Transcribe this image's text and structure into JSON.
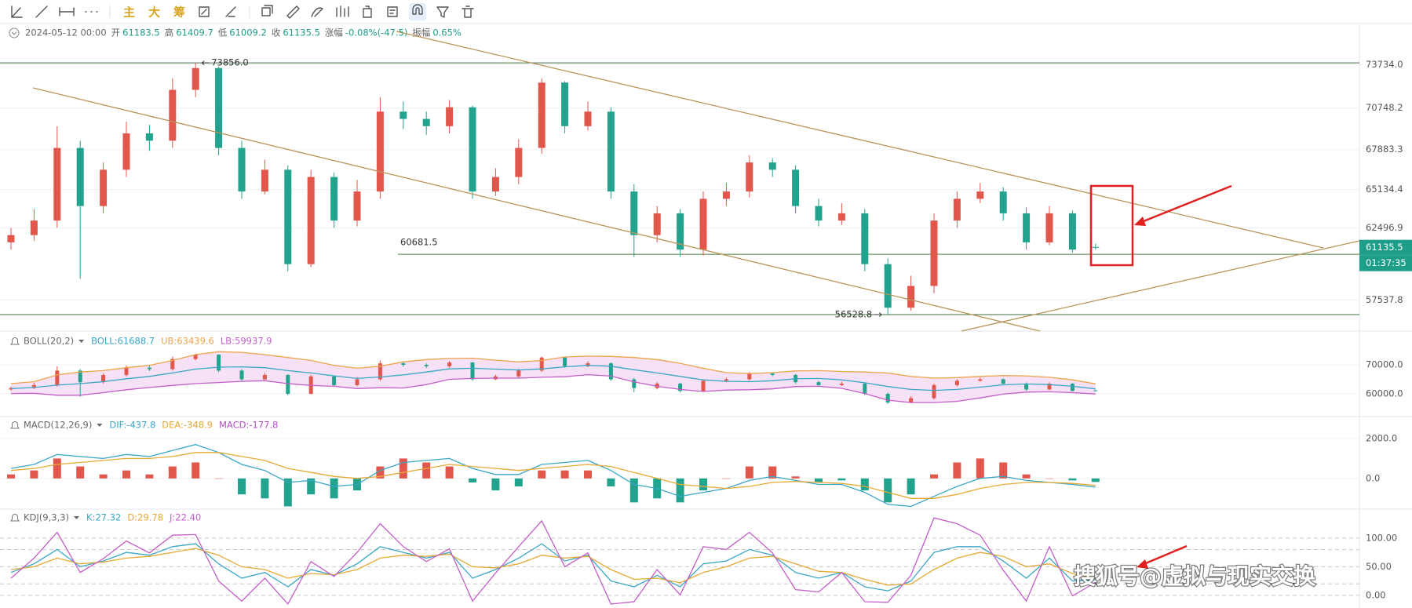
{
  "toolbar": {
    "labels": [
      "主",
      "大",
      "筹"
    ]
  },
  "info": {
    "datetime": "2024-05-12 00:00",
    "items": [
      {
        "label": "开",
        "value": 61183.5
      },
      {
        "label": "高",
        "value": 61409.7
      },
      {
        "label": "低",
        "value": 61009.2
      },
      {
        "label": "收",
        "value": 61135.5
      },
      {
        "label": "涨幅",
        "value": "-0.08%(-47.5)"
      },
      {
        "label": "振幅",
        "value": "0.65%"
      }
    ]
  },
  "watermark": "搜狐号@虚拟与现实交换",
  "chart_data": [
    {
      "type": "candlestick",
      "open": [
        61500,
        62000,
        63000,
        68000,
        64000,
        66500,
        69000,
        68500,
        72000,
        73500,
        68000,
        65000,
        66500,
        60000,
        66000,
        63000,
        65000,
        70500,
        70000,
        69500,
        70800,
        65000,
        66000,
        68000,
        72500,
        69500,
        70500,
        65000,
        62000,
        63500,
        61000,
        64500,
        65000,
        67000,
        66500,
        64000,
        63000,
        63500,
        60000,
        57000,
        58500,
        63000,
        64500,
        65000,
        63500,
        61500,
        63500,
        61183.5
      ],
      "high": [
        62500,
        63800,
        69500,
        68500,
        67000,
        69800,
        69600,
        72800,
        73856.0,
        73600,
        68500,
        67200,
        66800,
        66500,
        66300,
        65800,
        71500,
        71200,
        70500,
        71300,
        70900,
        66600,
        68600,
        72800,
        72600,
        71200,
        70800,
        65500,
        64000,
        63800,
        65000,
        65600,
        67500,
        67300,
        66800,
        64500,
        64200,
        63800,
        60400,
        59200,
        63500,
        65000,
        65600,
        65300,
        63900,
        64000,
        63700,
        61409.7
      ],
      "low": [
        61000,
        61600,
        62500,
        59000,
        63500,
        66000,
        67800,
        68000,
        71500,
        67500,
        64500,
        64800,
        59500,
        59800,
        62500,
        62600,
        64500,
        69300,
        68900,
        69000,
        64500,
        64700,
        65500,
        67600,
        69000,
        69200,
        64500,
        60500,
        61500,
        60500,
        60600,
        64000,
        64600,
        66000,
        63500,
        62600,
        62700,
        59500,
        56528.8,
        56800,
        58000,
        62500,
        64200,
        63000,
        61000,
        61300,
        60800,
        61009.2
      ],
      "close": [
        62000,
        63000,
        68000,
        64000,
        66500,
        69000,
        68500,
        72000,
        73500,
        68000,
        65000,
        66500,
        60000,
        66000,
        63000,
        65000,
        70500,
        70000,
        69500,
        70800,
        65000,
        66000,
        68000,
        72500,
        69500,
        70500,
        65000,
        62000,
        63500,
        61000,
        64500,
        65000,
        67000,
        66500,
        64000,
        63000,
        63500,
        60000,
        57000,
        58500,
        63000,
        64500,
        65000,
        63500,
        61500,
        63500,
        61000,
        61135.5
      ],
      "up_color": "#e2574c",
      "down_color": "#21a38d",
      "ylim": [
        55500,
        76350
      ],
      "yticks": [
        {
          "value": 73734.0,
          "label": "73734.0"
        },
        70748.2,
        67883.3,
        65134.4,
        62496.9,
        57537.8
      ],
      "grid": true,
      "annotations": [
        {
          "value": 73856.0,
          "label": "73856.0"
        },
        {
          "value": 56528.8,
          "label": "56528.8"
        }
      ],
      "level": 60681.5,
      "last_price": 61135.5,
      "countdown": "01:37:35"
    },
    {
      "type": "bollinger",
      "title": "BOLL(20,2)",
      "series": [
        {
          "name": "BOLL:61688.7",
          "color": "#3aa6c6",
          "values": [
            61800,
            62200,
            63000,
            63500,
            64200,
            65200,
            66000,
            67200,
            68500,
            69200,
            69300,
            69000,
            68000,
            67200,
            66200,
            65300,
            65800,
            66500,
            67500,
            68600,
            68800,
            68500,
            68200,
            68600,
            69300,
            69800,
            69500,
            68300,
            67200,
            66000,
            64800,
            64300,
            64200,
            64500,
            65200,
            65300,
            64800,
            63800,
            62500,
            61500,
            61200,
            61500,
            62300,
            63100,
            63400,
            63200,
            62600,
            61688.7
          ]
        },
        {
          "name": "UB:63439.6",
          "color": "#eda34a",
          "values": [
            63500,
            64200,
            66500,
            67500,
            68000,
            69000,
            69800,
            71500,
            73500,
            74500,
            74300,
            73500,
            72500,
            71500,
            69800,
            68800,
            69500,
            71000,
            71800,
            72200,
            72300,
            71600,
            71000,
            71500,
            72700,
            73000,
            72900,
            72500,
            71800,
            70500,
            68800,
            67300,
            67000,
            67300,
            67900,
            68000,
            67700,
            67500,
            67200,
            66000,
            65400,
            65600,
            66000,
            66300,
            66200,
            65700,
            64800,
            63439.6
          ]
        },
        {
          "name": "LB:59937.9",
          "color": "#c45ec8",
          "values": [
            60100,
            60200,
            59500,
            59500,
            60400,
            61400,
            62200,
            62900,
            63500,
            63900,
            64300,
            64500,
            63500,
            62900,
            62600,
            61800,
            62100,
            62000,
            63200,
            65000,
            65300,
            65400,
            65400,
            65700,
            65900,
            66600,
            66100,
            64100,
            62600,
            61500,
            60800,
            61300,
            61400,
            61700,
            62500,
            62600,
            61900,
            60100,
            57800,
            57000,
            57000,
            57400,
            58600,
            59900,
            60600,
            60700,
            60400,
            59937.9
          ]
        }
      ],
      "band_fill": "#f5d9f5",
      "ylim": [
        52430,
        80810
      ],
      "yticks": [
        {
          "value": 70000,
          "label": "70000.0"
        },
        {
          "value": 60000,
          "label": "60000.0"
        }
      ],
      "grid": true
    },
    {
      "type": "macd",
      "title": "MACD(12,26,9)",
      "series": [
        {
          "name": "DIF:-437.8",
          "color": "#3aa6c6",
          "values": [
            500,
            700,
            1200,
            1100,
            1000,
            1200,
            1100,
            1400,
            1700,
            1300,
            700,
            400,
            -200,
            -100,
            -400,
            -300,
            400,
            800,
            900,
            1000,
            500,
            200,
            200,
            700,
            800,
            900,
            400,
            -300,
            -500,
            -900,
            -700,
            -500,
            -100,
            100,
            -100,
            -300,
            -300,
            -700,
            -1300,
            -1400,
            -900,
            -400,
            0,
            100,
            -100,
            -200,
            -300,
            -437.8
          ]
        },
        {
          "name": "DEA:-348.9",
          "color": "#e6a935",
          "values": [
            400,
            500,
            700,
            800,
            900,
            1000,
            1000,
            1100,
            1300,
            1300,
            1100,
            900,
            500,
            300,
            100,
            0,
            100,
            300,
            500,
            700,
            600,
            500,
            400,
            500,
            600,
            700,
            600,
            300,
            0,
            -300,
            -400,
            -500,
            -400,
            -200,
            -150,
            -200,
            -250,
            -400,
            -700,
            -1000,
            -1000,
            -800,
            -500,
            -300,
            -200,
            -200,
            -250,
            -348.9
          ]
        },
        {
          "name": "MACD:-177.8",
          "color": "#b44fc6",
          "values": [
            200,
            400,
            1000,
            600,
            200,
            400,
            200,
            600,
            800,
            0,
            -800,
            -1000,
            -1400,
            -800,
            -1000,
            -600,
            600,
            1000,
            800,
            600,
            -200,
            -600,
            -400,
            400,
            400,
            400,
            -400,
            -1200,
            -1000,
            -1200,
            -600,
            0,
            600,
            600,
            100,
            -200,
            -100,
            -600,
            -1200,
            -800,
            200,
            800,
            1000,
            800,
            200,
            0,
            -100,
            -177.8
          ]
        }
      ],
      "up_color": "#e2574c",
      "down_color": "#21a38d",
      "ylim": [
        -1500,
        3060
      ],
      "yticks": [
        {
          "value": 2000,
          "label": "2000.0"
        },
        {
          "value": 0,
          "label": "0.0"
        }
      ],
      "grid": true
    },
    {
      "type": "kdj",
      "title": "KDJ(9,3,3)",
      "series": [
        {
          "name": "K:27.32",
          "color": "#3aa6c6",
          "values": [
            40,
            55,
            80,
            50,
            60,
            75,
            70,
            85,
            90,
            55,
            30,
            40,
            15,
            45,
            35,
            55,
            85,
            75,
            65,
            75,
            30,
            45,
            65,
            90,
            60,
            70,
            25,
            15,
            35,
            15,
            55,
            60,
            80,
            70,
            40,
            30,
            40,
            15,
            8,
            25,
            75,
            85,
            85,
            60,
            30,
            65,
            25,
            27.32
          ]
        },
        {
          "name": "D:29.78",
          "color": "#e6a935",
          "values": [
            45,
            50,
            65,
            55,
            58,
            65,
            68,
            75,
            82,
            70,
            50,
            45,
            30,
            38,
            36,
            45,
            65,
            70,
            68,
            72,
            50,
            48,
            55,
            70,
            65,
            68,
            45,
            28,
            30,
            22,
            40,
            50,
            65,
            68,
            55,
            42,
            40,
            28,
            18,
            20,
            45,
            65,
            75,
            68,
            50,
            55,
            38,
            29.78
          ]
        },
        {
          "name": "J:22.40",
          "color": "#c45ec8",
          "values": [
            30,
            65,
            110,
            40,
            64,
            95,
            74,
            105,
            106,
            25,
            -10,
            30,
            -15,
            59,
            33,
            75,
            125,
            85,
            59,
            81,
            -10,
            39,
            85,
            130,
            50,
            74,
            -15,
            -11,
            45,
            1,
            85,
            80,
            110,
            74,
            10,
            6,
            40,
            -11,
            -12,
            35,
            135,
            125,
            105,
            44,
            -10,
            85,
            -1,
            22.4
          ]
        }
      ],
      "ylim": [
        -22,
        149
      ],
      "yticks": [
        {
          "value": 100,
          "label": "100.00"
        },
        {
          "value": 50,
          "label": "50.00"
        },
        {
          "value": 0,
          "label": "0.00"
        }
      ],
      "levels": [
        80,
        20
      ],
      "grid": true
    }
  ]
}
